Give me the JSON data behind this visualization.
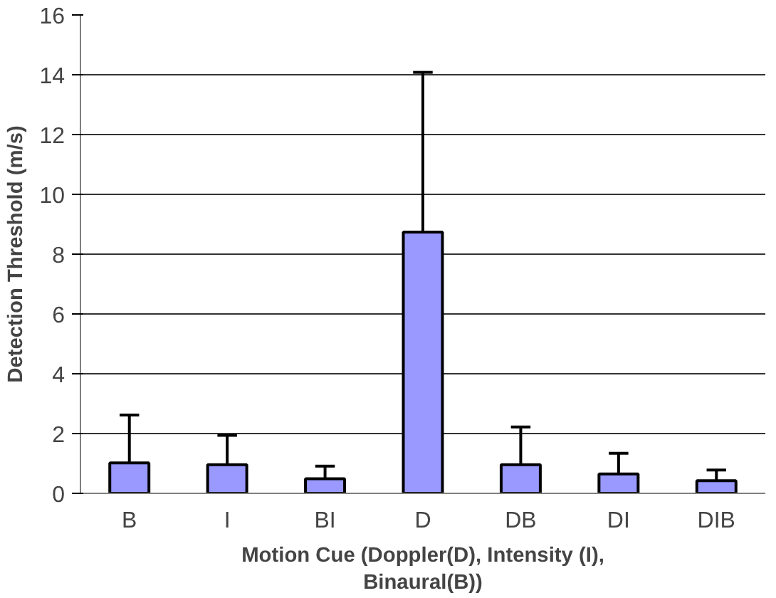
{
  "chart_data": {
    "type": "bar",
    "xlabel": "Motion Cue (Doppler(D), Intensity (I),\nBinaural(B))",
    "ylabel": "Detection Threshold (m/s)",
    "categories": [
      "B",
      "I",
      "BI",
      "D",
      "DB",
      "DI",
      "DIB"
    ],
    "values": [
      1.02,
      0.96,
      0.49,
      8.74,
      0.96,
      0.65,
      0.42
    ],
    "errors": [
      [
        1.02,
        2.62
      ],
      [
        0.96,
        1.94
      ],
      [
        0.49,
        0.91
      ],
      [
        8.74,
        14.08
      ],
      [
        0.96,
        2.22
      ],
      [
        0.65,
        1.34
      ],
      [
        0.42,
        0.78
      ]
    ],
    "color": "#9999ff",
    "ylim": [
      0,
      16
    ],
    "yticks": [
      0,
      2,
      4,
      6,
      8,
      10,
      12,
      14,
      16
    ],
    "grid": "y"
  }
}
